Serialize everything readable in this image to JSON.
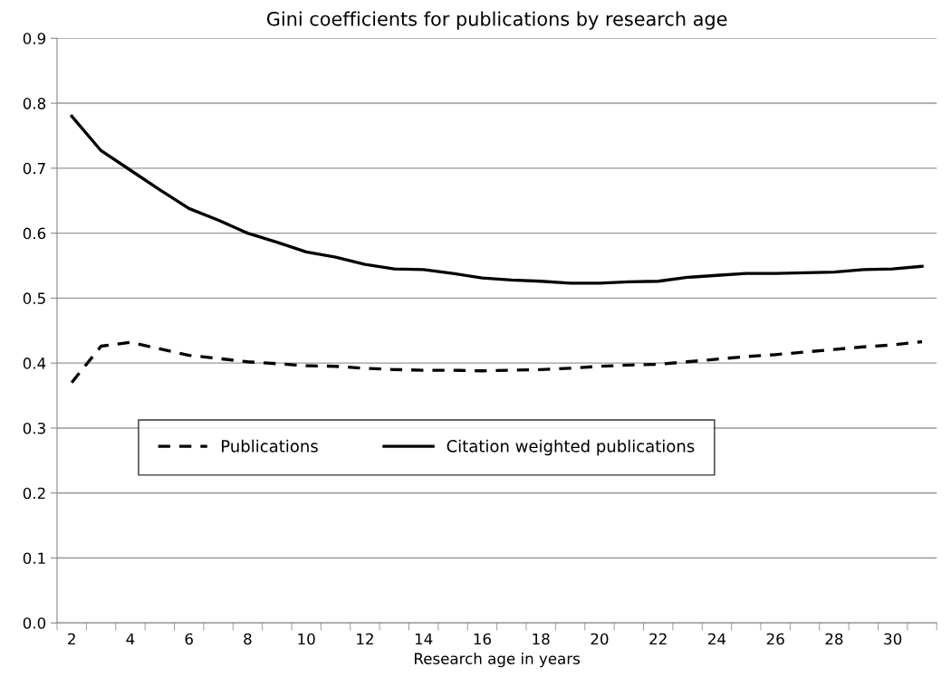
{
  "chart_data": {
    "type": "line",
    "title": "Gini coefficients for publications by research age",
    "xlabel": "Research age in years",
    "categories": [
      "2",
      null,
      "4",
      null,
      "6",
      null,
      "8",
      null,
      "10",
      null,
      "12",
      null,
      "14",
      null,
      "16",
      null,
      "18",
      null,
      "20",
      null,
      "22",
      null,
      "24",
      null,
      "26",
      null,
      "28",
      null,
      "30",
      null
    ],
    "series": [
      {
        "name": "Publications",
        "color": "#000000",
        "line_style": "dashed",
        "values": [
          0.37,
          0.426,
          0.432,
          0.422,
          0.412,
          0.407,
          0.402,
          0.399,
          0.396,
          0.395,
          0.392,
          0.39,
          0.389,
          0.389,
          0.388,
          0.389,
          0.39,
          0.392,
          0.395,
          0.397,
          0.398,
          0.402,
          0.406,
          0.41,
          0.413,
          0.417,
          0.421,
          0.425,
          0.428,
          0.433
        ]
      },
      {
        "name": "Citation weighted publications",
        "color": "#000000",
        "line_style": "solid",
        "values": [
          0.78,
          0.727,
          0.697,
          0.667,
          0.638,
          0.62,
          0.6,
          0.586,
          0.571,
          0.563,
          0.552,
          0.545,
          0.544,
          0.538,
          0.531,
          0.528,
          0.526,
          0.523,
          0.523,
          0.525,
          0.526,
          0.532,
          0.535,
          0.538,
          0.538,
          0.539,
          0.54,
          0.544,
          0.545,
          0.549
        ]
      }
    ],
    "ylim": [
      0,
      0.9
    ],
    "yticks": [
      {
        "value": 0,
        "label": "0.0"
      },
      0.1,
      0.2,
      0.3,
      0.4,
      0.5,
      0.6,
      0.7,
      0.8,
      0.9
    ],
    "grid": "y",
    "legend": "center",
    "marker": "none"
  }
}
